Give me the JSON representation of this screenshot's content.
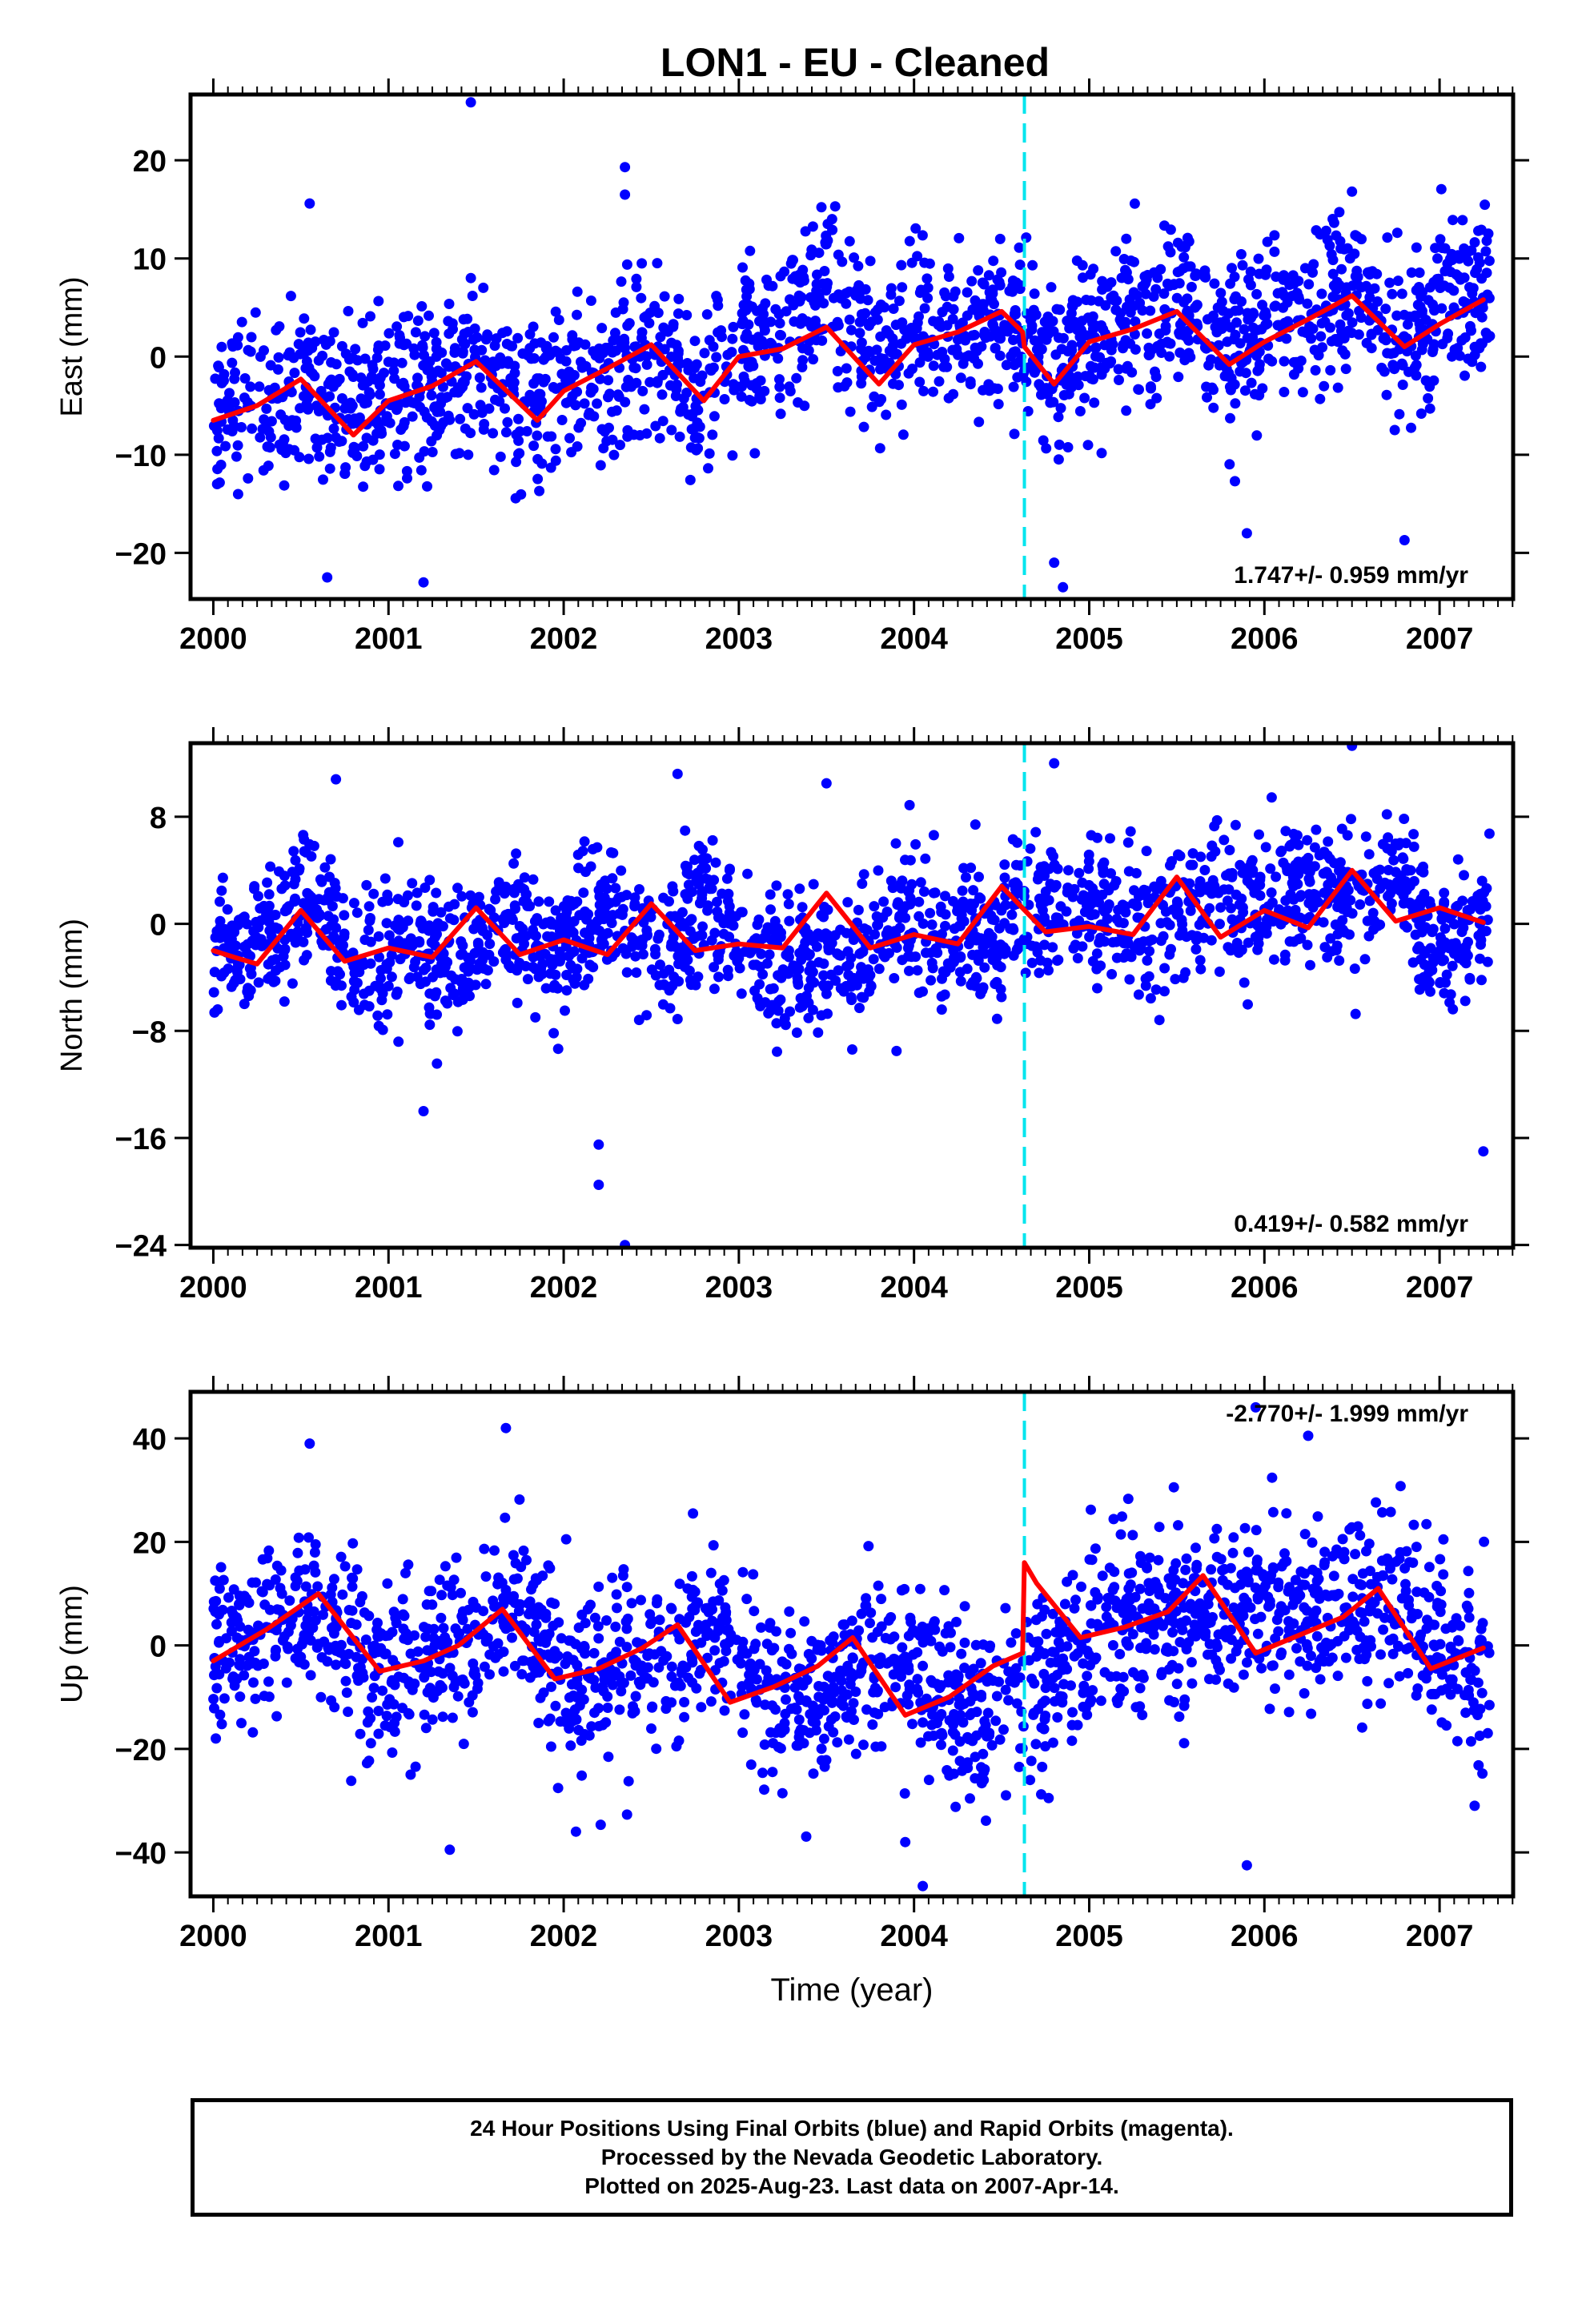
{
  "figure_title": "LON1  - EU - Cleaned",
  "caption": {
    "line1": "24 Hour Positions Using Final Orbits (blue) and Rapid Orbits (magenta).",
    "line2": "Processed by the Nevada Geodetic Laboratory.",
    "line3": "Plotted on 2025-Aug-23. Last data on 2007-Apr-14."
  },
  "colors": {
    "points": "#0000ff",
    "model": "#ff0000",
    "offset_line": "#00e5ee",
    "axis": "#000000"
  },
  "chart_data": [
    {
      "type": "scatter",
      "component": "east",
      "ylabel": "East (mm)",
      "xlabel": "",
      "xlim": [
        1999.87,
        2007.42
      ],
      "ylim": [
        -24.7,
        26.7
      ],
      "xticks": [
        2000,
        2001,
        2002,
        2003,
        2004,
        2005,
        2006,
        2007
      ],
      "yticks": [
        -20,
        -10,
        0,
        10,
        20
      ],
      "rate_label": "1.747+/- 0.959 mm/yr",
      "offset_epoch": 2004.63,
      "model": {
        "x": [
          2000.0,
          2000.25,
          2000.5,
          2000.8,
          2001.0,
          2001.25,
          2001.5,
          2001.85,
          2002.0,
          2002.25,
          2002.5,
          2002.8,
          2003.0,
          2003.25,
          2003.5,
          2003.8,
          2004.0,
          2004.25,
          2004.5,
          2004.62,
          2004.63,
          2004.8,
          2005.0,
          2005.25,
          2005.5,
          2005.8,
          2006.0,
          2006.25,
          2006.5,
          2006.8,
          2007.0,
          2007.25
        ],
        "y": [
          -6.5,
          -5.0,
          -2.3,
          -8.0,
          -4.5,
          -3.0,
          -0.5,
          -6.5,
          -3.5,
          -1.2,
          1.2,
          -4.5,
          0.0,
          0.8,
          3.0,
          -2.8,
          1.2,
          2.5,
          4.6,
          2.5,
          1.0,
          -2.8,
          1.5,
          2.8,
          4.6,
          -0.8,
          1.5,
          3.8,
          6.2,
          1.0,
          3.3,
          5.8
        ]
      },
      "points": {
        "center": [
          -5.0,
          -4.5,
          -3.0,
          -6.0,
          -3.8,
          -2.5,
          0.0,
          -5.0,
          -3.0,
          -1.5,
          1.0,
          -5.0,
          1.0,
          3.0,
          6.5,
          0.0,
          3.0,
          1.5,
          4.0,
          -1.0,
          2.0,
          4.0,
          6.0,
          0.0,
          4.0,
          4.5,
          7.0,
          1.0,
          6.0,
          6.5
        ],
        "scatter_mm": 4.2,
        "outliers": [
          [
            2001.47,
            25.9
          ],
          [
            2002.35,
            19.3
          ],
          [
            2002.35,
            16.5
          ],
          [
            2000.55,
            15.6
          ],
          [
            2003.55,
            15.3
          ],
          [
            2004.8,
            -21.0
          ],
          [
            2004.85,
            -23.5
          ],
          [
            2000.65,
            -22.5
          ],
          [
            2001.2,
            -23.0
          ],
          [
            2005.9,
            -18.0
          ],
          [
            2006.8,
            -18.7
          ],
          [
            2006.5,
            16.8
          ]
        ]
      }
    },
    {
      "type": "scatter",
      "component": "north",
      "ylabel": "North (mm)",
      "xlabel": "",
      "xlim": [
        1999.87,
        2007.42
      ],
      "ylim": [
        -24.2,
        13.5
      ],
      "xticks": [
        2000,
        2001,
        2002,
        2003,
        2004,
        2005,
        2006,
        2007
      ],
      "yticks": [
        -24,
        -16,
        -8,
        0,
        8
      ],
      "rate_label": "0.419+/- 0.582 mm/yr",
      "offset_epoch": 2004.63,
      "model": {
        "x": [
          2000.0,
          2000.12,
          2000.25,
          2000.5,
          2000.75,
          2001.0,
          2001.25,
          2001.5,
          2001.75,
          2002.0,
          2002.25,
          2002.5,
          2002.75,
          2003.0,
          2003.25,
          2003.5,
          2003.75,
          2004.0,
          2004.25,
          2004.5,
          2004.75,
          2005.0,
          2005.25,
          2005.5,
          2005.75,
          2006.0,
          2006.25,
          2006.5,
          2006.75,
          2007.0,
          2007.25
        ],
        "y": [
          -2.0,
          -2.5,
          -3.0,
          1.0,
          -2.8,
          -1.8,
          -2.5,
          1.2,
          -2.3,
          -1.2,
          -2.3,
          1.5,
          -2.0,
          -1.5,
          -1.8,
          2.3,
          -1.8,
          -0.8,
          -1.5,
          2.8,
          -0.6,
          -0.2,
          -0.8,
          3.5,
          -1.0,
          1.0,
          -0.3,
          4.0,
          0.2,
          1.2,
          0.1
        ]
      },
      "points": {
        "center": [
          -2.0,
          -2.0,
          2.0,
          -3.0,
          -2.0,
          -3.0,
          1.0,
          -2.5,
          2.0,
          -3.0,
          1.0,
          -2.0,
          -3.0,
          -3.0,
          1.0,
          -1.0,
          -0.5,
          1.0,
          1.5,
          -0.5,
          1.0,
          1.5,
          2.0,
          2.5,
          3.0,
          -2.0,
          1.0
        ],
        "scatter_mm": 2.6,
        "outliers": [
          [
            2002.2,
            -19.5
          ],
          [
            2002.35,
            -24.0
          ],
          [
            2002.2,
            -16.5
          ],
          [
            2002.65,
            11.2
          ],
          [
            2003.5,
            10.5
          ],
          [
            2000.7,
            10.8
          ],
          [
            2004.8,
            12.0
          ],
          [
            2006.5,
            13.3
          ],
          [
            2007.25,
            -17.0
          ],
          [
            2001.2,
            -14.0
          ],
          [
            2003.9,
            -9.5
          ]
        ]
      }
    },
    {
      "type": "scatter",
      "component": "up",
      "ylabel": "Up (mm)",
      "xlabel": "Time (year)",
      "xlim": [
        1999.87,
        2007.42
      ],
      "ylim": [
        -48.5,
        49
      ],
      "xticks": [
        2000,
        2001,
        2002,
        2003,
        2004,
        2005,
        2006,
        2007
      ],
      "yticks": [
        -40,
        -20,
        0,
        20,
        40
      ],
      "rate_label": "-2.770+/- 1.999 mm/yr",
      "offset_epoch": 2004.63,
      "model": {
        "x": [
          2000.0,
          2000.3,
          2000.6,
          2000.95,
          2001.2,
          2001.4,
          2001.65,
          2001.95,
          2002.2,
          2002.45,
          2002.65,
          2002.95,
          2003.2,
          2003.45,
          2003.65,
          2003.95,
          2004.2,
          2004.45,
          2004.62,
          2004.63,
          2004.7,
          2004.95,
          2005.2,
          2005.45,
          2005.65,
          2005.95,
          2006.2,
          2006.45,
          2006.65,
          2006.95,
          2007.25
        ],
        "y": [
          -3.0,
          3.0,
          10.0,
          -5.0,
          -3.0,
          0.0,
          7.0,
          -6.5,
          -4.5,
          -0.5,
          4.0,
          -11.0,
          -8.0,
          -4.0,
          1.5,
          -13.5,
          -10.0,
          -4.0,
          -1.5,
          16.0,
          12.0,
          1.5,
          3.5,
          6.5,
          13.5,
          -1.5,
          2.0,
          5.5,
          11.0,
          -4.5,
          -0.5
        ]
      },
      "points": {
        "center": [
          -3.0,
          3.0,
          8.0,
          -5.0,
          -3.0,
          2.0,
          6.0,
          -6.0,
          -4.5,
          0.0,
          3.0,
          -10.0,
          -7.0,
          -3.0,
          -6.0,
          -15.0,
          -9.0,
          -2.0,
          5.0,
          6.0,
          8.0,
          6.0,
          5.0,
          9.0,
          -2.0,
          -5.0
        ],
        "scatter_mm": 8.5,
        "outliers": [
          [
            2001.67,
            42.0
          ],
          [
            2000.55,
            39.0
          ],
          [
            2005.95,
            46.0
          ],
          [
            2006.25,
            40.5
          ],
          [
            2005.9,
            -42.5
          ],
          [
            2004.05,
            -46.5
          ],
          [
            2003.95,
            -38.0
          ],
          [
            2001.35,
            -39.5
          ],
          [
            2002.07,
            -36.0
          ],
          [
            2007.2,
            -31.0
          ]
        ]
      }
    }
  ]
}
